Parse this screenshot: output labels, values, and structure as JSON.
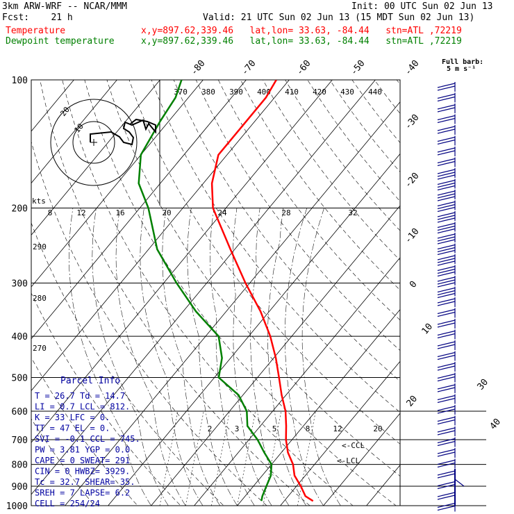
{
  "header": {
    "model": "3km ARW-WRF -- NCAR/MMM",
    "init": "Init: 00 UTC Sun 02 Jun 13",
    "fcst": "Fcst:    21 h",
    "valid": "Valid: 21 UTC Sun 02 Jun 13 (15 MDT Sun 02 Jun 13)",
    "temp_label": "Temperature",
    "dew_label": "Dewpoint temperature",
    "loc1": "x,y=897.62,339.46   lat,lon= 33.63, -84.44   stn=ATL ,72219",
    "loc2": "x,y=897.62,339.46   lat,lon= 33.63, -84.44   stn=ATL ,72219",
    "full_barb": "Full barb:",
    "full_barb_unit": "5 m s⁻¹"
  },
  "colors": {
    "temperature": "#ff0000",
    "dewpoint": "#008000",
    "barbs": "#000080",
    "text_blue": "#0000a0"
  },
  "parcel": {
    "title": "Parcel Info",
    "rows": [
      "T  =  26.7  Td =  14.7",
      "LI =   0.7  LCL = 812.",
      "K  =    33  LFC =   0.",
      "TT =    47  EL  =   0.",
      "SVI =  -0.1  CCL = 745.",
      "PW =  3.81  YGP =  0.0",
      "CAPE =    0  SWEAT=  291",
      "CIN =     0  HWBZ= 3929.",
      "Tc =  32.7  SHEAR=  35.",
      "SREH =    7  LAPSE=  6.2",
      "CELL = 254/24"
    ]
  },
  "labels": {
    "ccl": "<-CCL",
    "lcl": "<-LCL",
    "hodo_unit": "kts",
    "hodo_rings": [
      "10",
      "20"
    ]
  },
  "chart_data": {
    "type": "skew-t",
    "pressure_levels": [
      1000,
      900,
      800,
      700,
      600,
      500,
      400,
      300,
      200,
      100
    ],
    "upper_ticks": [
      "370",
      "380",
      "390",
      "400",
      "410",
      "420",
      "430",
      "440"
    ],
    "mid_ticks": [
      "8",
      "12",
      "16",
      "20",
      "24",
      "28",
      "32"
    ],
    "mixing_ticks": [
      "2",
      "3",
      "5",
      "8",
      "12",
      "20"
    ],
    "theta_labels": [
      "290",
      "280",
      "270"
    ],
    "top_temp_labels": [
      "-80",
      "-70",
      "-60",
      "-50",
      "-40"
    ],
    "right_temp_labels": [
      "-30",
      "-20",
      "-10",
      "0",
      "10",
      "20",
      "30",
      "40"
    ],
    "temperature_profile": [
      {
        "p": 975,
        "t": 26.7
      },
      {
        "p": 950,
        "t": 24.0
      },
      {
        "p": 900,
        "t": 21.0
      },
      {
        "p": 850,
        "t": 17.5
      },
      {
        "p": 800,
        "t": 15.0
      },
      {
        "p": 750,
        "t": 11.5
      },
      {
        "p": 700,
        "t": 8.6
      },
      {
        "p": 650,
        "t": 6.0
      },
      {
        "p": 600,
        "t": 3.0
      },
      {
        "p": 550,
        "t": -1.0
      },
      {
        "p": 500,
        "t": -5.0
      },
      {
        "p": 450,
        "t": -9.5
      },
      {
        "p": 400,
        "t": -15.0
      },
      {
        "p": 350,
        "t": -22.0
      },
      {
        "p": 300,
        "t": -31.0
      },
      {
        "p": 250,
        "t": -41.0
      },
      {
        "p": 200,
        "t": -53.0
      },
      {
        "p": 175,
        "t": -58.0
      },
      {
        "p": 150,
        "t": -62.0
      },
      {
        "p": 125,
        "t": -62.0
      },
      {
        "p": 110,
        "t": -62.0
      },
      {
        "p": 100,
        "t": -63.0
      }
    ],
    "dewpoint_profile": [
      {
        "p": 975,
        "t": 14.7
      },
      {
        "p": 950,
        "t": 14.0
      },
      {
        "p": 900,
        "t": 13.0
      },
      {
        "p": 850,
        "t": 12.0
      },
      {
        "p": 800,
        "t": 10.0
      },
      {
        "p": 750,
        "t": 6.0
      },
      {
        "p": 700,
        "t": 2.0
      },
      {
        "p": 650,
        "t": -3.0
      },
      {
        "p": 600,
        "t": -6.0
      },
      {
        "p": 550,
        "t": -11.0
      },
      {
        "p": 500,
        "t": -19.0
      },
      {
        "p": 450,
        "t": -22.0
      },
      {
        "p": 400,
        "t": -27.0
      },
      {
        "p": 350,
        "t": -37.0
      },
      {
        "p": 300,
        "t": -47.0
      },
      {
        "p": 250,
        "t": -58.0
      },
      {
        "p": 200,
        "t": -68.0
      },
      {
        "p": 175,
        "t": -75.0
      },
      {
        "p": 150,
        "t": -80.0
      },
      {
        "p": 125,
        "t": -82.0
      },
      {
        "p": 110,
        "t": -83.0
      },
      {
        "p": 100,
        "t": -85.0
      }
    ],
    "wind_barb_count": 40
  }
}
